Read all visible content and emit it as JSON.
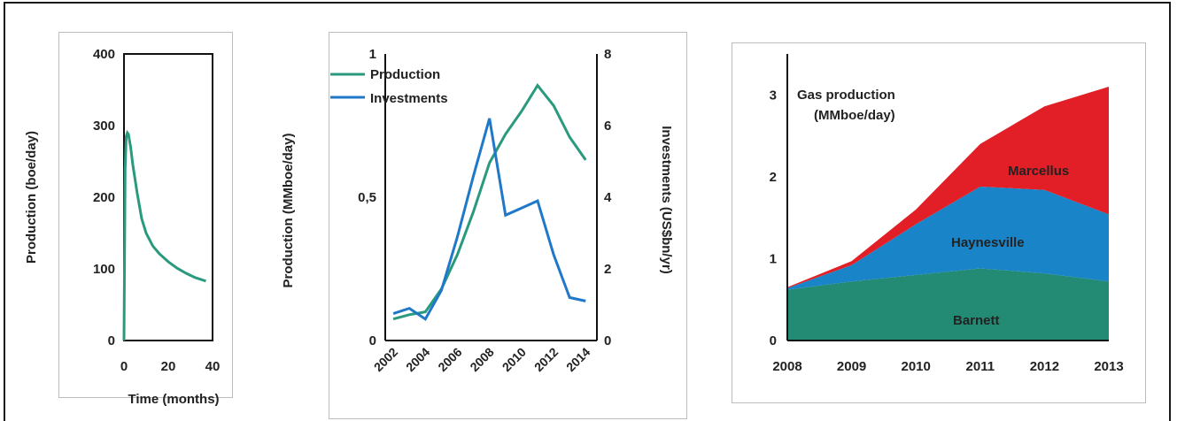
{
  "chart_data": [
    {
      "type": "line",
      "ylabel": "Production (boe/day)",
      "xlabel": "Time (months)",
      "xlim": [
        0,
        40
      ],
      "ylim": [
        0,
        400
      ],
      "x_ticks": [
        "0",
        "20",
        "40"
      ],
      "y_ticks": [
        "0",
        "100",
        "200",
        "300",
        "400"
      ],
      "series": [
        {
          "color": "#2a9a7e",
          "points": [
            [
              0,
              0
            ],
            [
              0.5,
              240
            ],
            [
              1,
              285
            ],
            [
              1.5,
              290
            ],
            [
              2,
              288
            ],
            [
              3,
              270
            ],
            [
              4,
              245
            ],
            [
              6,
              205
            ],
            [
              8,
              170
            ],
            [
              10,
              150
            ],
            [
              13,
              132
            ],
            [
              16,
              121
            ],
            [
              20,
              110
            ],
            [
              24,
              101
            ],
            [
              28,
              94
            ],
            [
              32,
              88
            ],
            [
              36,
              84
            ],
            [
              37,
              83
            ]
          ]
        }
      ]
    },
    {
      "type": "line",
      "ylabel": "Production (MMboe/day)",
      "y2label": "Investments (US$bn/yr)",
      "xlim": [
        2001.5,
        2014.7
      ],
      "ylim": [
        0,
        1
      ],
      "y2lim": [
        0,
        8
      ],
      "x_ticks": [
        "2002",
        "2004",
        "2006",
        "2008",
        "2010",
        "2012",
        "2014"
      ],
      "y_ticks": [
        "0",
        "0,5",
        "1"
      ],
      "y2_ticks": [
        "0",
        "2",
        "4",
        "6",
        "8"
      ],
      "legend": "top-left",
      "series": [
        {
          "name": "Production",
          "color": "#2a9a7e",
          "axis": "left",
          "points": [
            [
              2002,
              0.075
            ],
            [
              2003,
              0.09
            ],
            [
              2004,
              0.1
            ],
            [
              2005,
              0.18
            ],
            [
              2006,
              0.3
            ],
            [
              2007,
              0.45
            ],
            [
              2008,
              0.62
            ],
            [
              2009,
              0.72
            ],
            [
              2010,
              0.8
            ],
            [
              2011,
              0.89
            ],
            [
              2012,
              0.82
            ],
            [
              2013,
              0.71
            ],
            [
              2014,
              0.63
            ]
          ]
        },
        {
          "name": "Investments",
          "color": "#1f78c8",
          "axis": "right",
          "points": [
            [
              2002,
              0.75
            ],
            [
              2003,
              0.9
            ],
            [
              2004,
              0.6
            ],
            [
              2005,
              1.4
            ],
            [
              2006,
              2.9
            ],
            [
              2007,
              4.6
            ],
            [
              2008,
              6.2
            ],
            [
              2009,
              3.5
            ],
            [
              2010,
              3.7
            ],
            [
              2011,
              3.9
            ],
            [
              2012,
              2.4
            ],
            [
              2013,
              1.2
            ],
            [
              2014,
              1.1
            ]
          ]
        }
      ]
    },
    {
      "type": "area",
      "title": "Gas production",
      "subtitle": "(MMboe/day)",
      "stacked": true,
      "x": [
        2008,
        2009,
        2010,
        2011,
        2012,
        2013
      ],
      "x_ticks": [
        "2008",
        "2009",
        "2010",
        "2011",
        "2012",
        "2013"
      ],
      "y_ticks": [
        "0",
        "1",
        "2",
        "3"
      ],
      "xlim": [
        2008,
        2013
      ],
      "ylim": [
        0,
        3.5
      ],
      "series": [
        {
          "name": "Barnett",
          "color": "#238a74",
          "values": [
            0.62,
            0.72,
            0.8,
            0.88,
            0.82,
            0.72
          ]
        },
        {
          "name": "Haynesville",
          "color": "#1a84c8",
          "values": [
            0.02,
            0.2,
            0.62,
            1.0,
            1.02,
            0.82
          ]
        },
        {
          "name": "Marcellus",
          "color": "#e21f26",
          "values": [
            0.01,
            0.05,
            0.18,
            0.52,
            1.02,
            1.56
          ]
        }
      ]
    }
  ]
}
